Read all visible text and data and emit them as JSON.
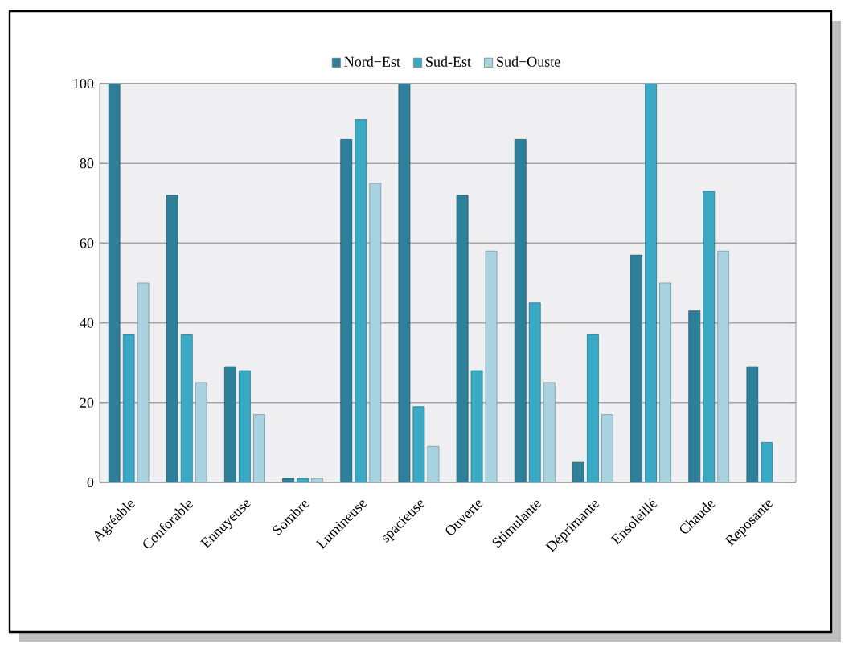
{
  "chart_data": {
    "type": "bar",
    "categories": [
      "Agréable",
      "Conforable",
      "Ennuyeuse",
      "Sombre",
      "Lumineuse",
      "spacieuse",
      "Ouverte",
      "Stimulante",
      "Déprimante",
      "Ensoleillé",
      "Chaude",
      "Reposante"
    ],
    "series": [
      {
        "name": "Nord−Est",
        "color": "#2e7f99",
        "values": [
          100,
          72,
          29,
          1,
          86,
          100,
          72,
          86,
          5,
          57,
          43,
          29
        ]
      },
      {
        "name": "Sud-Est",
        "color": "#3aa9c4",
        "values": [
          37,
          37,
          28,
          1,
          91,
          19,
          28,
          45,
          37,
          100,
          73,
          10
        ]
      },
      {
        "name": "Sud−Ouste",
        "color": "#a9d3e0",
        "values": [
          50,
          25,
          17,
          1,
          75,
          9,
          58,
          25,
          17,
          50,
          58,
          null
        ]
      }
    ],
    "ylim": [
      0,
      100
    ],
    "yticks": [
      0,
      20,
      40,
      60,
      80,
      100
    ],
    "grid": "y",
    "legend": "top"
  }
}
